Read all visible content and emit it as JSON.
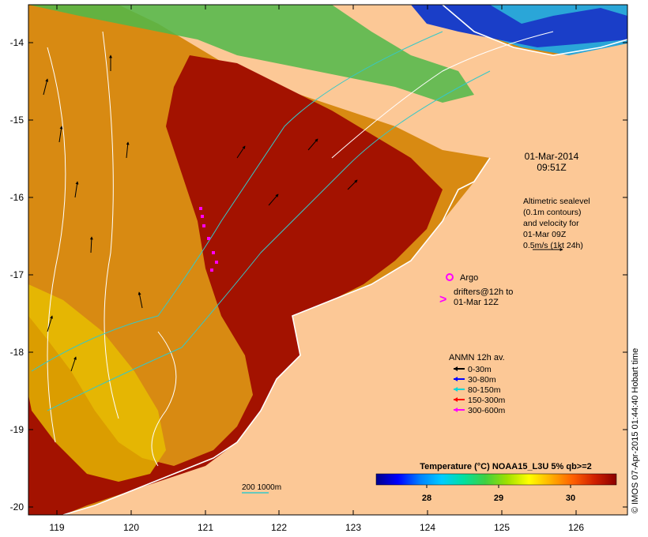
{
  "map": {
    "y_ticks": [
      "-14",
      "-15",
      "-16",
      "-17",
      "-18",
      "-19",
      "-20"
    ],
    "x_ticks": [
      "119",
      "120",
      "121",
      "122",
      "123",
      "124",
      "125",
      "126"
    ]
  },
  "annotations": {
    "date": "01-Mar-2014",
    "time": "09:51Z",
    "altimetry_lines": [
      "Altimetric sealevel",
      "(0.1m contours)",
      "and velocity for",
      "01-Mar 09Z",
      "0.5m/s (1kt 24h)"
    ],
    "argo": "Argo",
    "drifters_lines": [
      "drifters@12h to",
      "01-Mar 12Z"
    ],
    "scalebar": "200  1000m"
  },
  "legend": {
    "title": "ANMN 12h av.",
    "items": [
      {
        "label": "0-30m",
        "color": "#000000"
      },
      {
        "label": "30-80m",
        "color": "#0000ff"
      },
      {
        "label": "80-150m",
        "color": "#00d8d8"
      },
      {
        "label": "150-300m",
        "color": "#ff0000"
      },
      {
        "label": "300-600m",
        "color": "#ff00ff"
      }
    ]
  },
  "colorbar": {
    "title": "Temperature (°C) NOAA15_L3U 5% qb>=2",
    "ticks": [
      "28",
      "29",
      "30"
    ],
    "colors": [
      "#00008b",
      "#0000ff",
      "#0080ff",
      "#00ccff",
      "#00e0a0",
      "#40d040",
      "#a0e000",
      "#ffff00",
      "#ffb000",
      "#ff6000",
      "#d02000",
      "#8b0000"
    ]
  },
  "footer": "© IMOS 07-Apr-2015 01:44:40 Hobart time"
}
